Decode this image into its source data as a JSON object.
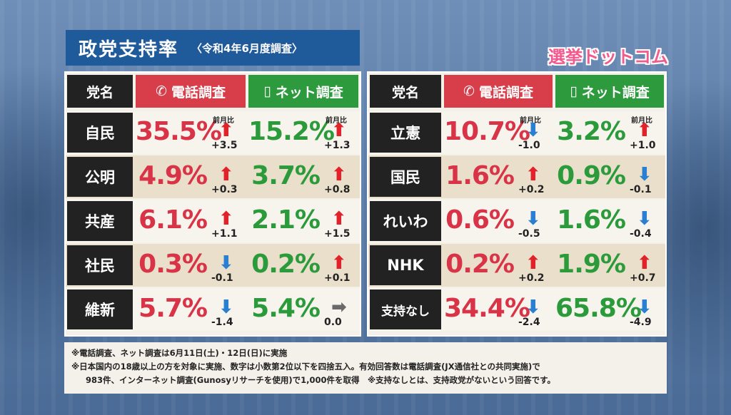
{
  "title": "政党支持率",
  "subtitle": "〈令和4年6月度調査〉",
  "logo": "選挙ドットコム",
  "headers": {
    "party": "党名",
    "phone": "電話調査",
    "net": "ネット調査"
  },
  "zenketsu": "前月比",
  "colors": {
    "phone": "#d83346",
    "net": "#2a9a3a",
    "up": "#e0232b",
    "down": "#2a7fd0",
    "flat": "#6a6a6a"
  },
  "left": [
    {
      "party": "自民",
      "phone": "35.5%",
      "phone_dir": "up",
      "phone_chg": "+3.5",
      "net": "15.2%",
      "net_dir": "up",
      "net_chg": "+1.3"
    },
    {
      "party": "公明",
      "phone": "4.9%",
      "phone_dir": "up",
      "phone_chg": "+0.3",
      "net": "3.7%",
      "net_dir": "up",
      "net_chg": "+0.8"
    },
    {
      "party": "共産",
      "phone": "6.1%",
      "phone_dir": "up",
      "phone_chg": "+1.1",
      "net": "2.1%",
      "net_dir": "up",
      "net_chg": "+1.5"
    },
    {
      "party": "社民",
      "phone": "0.3%",
      "phone_dir": "down",
      "phone_chg": "-0.1",
      "net": "0.2%",
      "net_dir": "up",
      "net_chg": "+0.1"
    },
    {
      "party": "維新",
      "phone": "5.7%",
      "phone_dir": "down",
      "phone_chg": "-1.4",
      "net": "5.4%",
      "net_dir": "flat",
      "net_chg": "0.0"
    }
  ],
  "right": [
    {
      "party": "立憲",
      "phone": "10.7%",
      "phone_dir": "down",
      "phone_chg": "-1.0",
      "net": "3.2%",
      "net_dir": "up",
      "net_chg": "+1.0"
    },
    {
      "party": "国民",
      "phone": "1.6%",
      "phone_dir": "up",
      "phone_chg": "+0.2",
      "net": "0.9%",
      "net_dir": "down",
      "net_chg": "-0.1"
    },
    {
      "party": "れいわ",
      "phone": "0.6%",
      "phone_dir": "down",
      "phone_chg": "-0.5",
      "net": "1.6%",
      "net_dir": "down",
      "net_chg": "-0.4"
    },
    {
      "party": "NHK",
      "phone": "0.2%",
      "phone_dir": "up",
      "phone_chg": "+0.2",
      "net": "1.9%",
      "net_dir": "up",
      "net_chg": "+0.7"
    },
    {
      "party": "支持なし",
      "phone": "34.4%",
      "phone_dir": "down",
      "phone_chg": "-2.4",
      "net": "65.8%",
      "net_dir": "down",
      "net_chg": "-4.9"
    }
  ],
  "notes": {
    "line1": "※電話調査、ネット調査は6月11日(土)・12日(日)に実施",
    "line2": "※日本国内の18歳以上の方を対象に実施、数字は小数第2位以下を四捨五入。有効回答数は電話調査(JX通信社との共同実施)で",
    "line3": "983件、インターネット調査(Gunosyリサーチを使用)で1,000件を取得　※支持なしとは、支持政党がないという回答です。"
  }
}
